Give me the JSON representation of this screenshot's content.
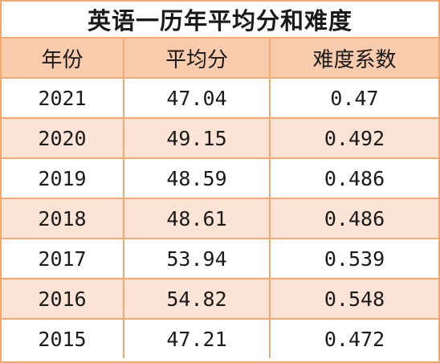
{
  "title": "英语一历年平均分和难度",
  "headers": [
    "年份",
    "平均分",
    "难度系数"
  ],
  "rows": [
    [
      "2021",
      "47.04",
      "0.47"
    ],
    [
      "2020",
      "49.15",
      "0.492"
    ],
    [
      "2019",
      "48.59",
      "0.486"
    ],
    [
      "2018",
      "48.61",
      "0.486"
    ],
    [
      "2017",
      "53.94",
      "0.539"
    ],
    [
      "2016",
      "54.82",
      "0.548"
    ],
    [
      "2015",
      "47.21",
      "0.472"
    ]
  ],
  "colors": {
    "border": "#f4a86f",
    "header_fill": "#f8cbad",
    "band_fill": "#fbe4d5",
    "row_fill": "#ffffff"
  }
}
